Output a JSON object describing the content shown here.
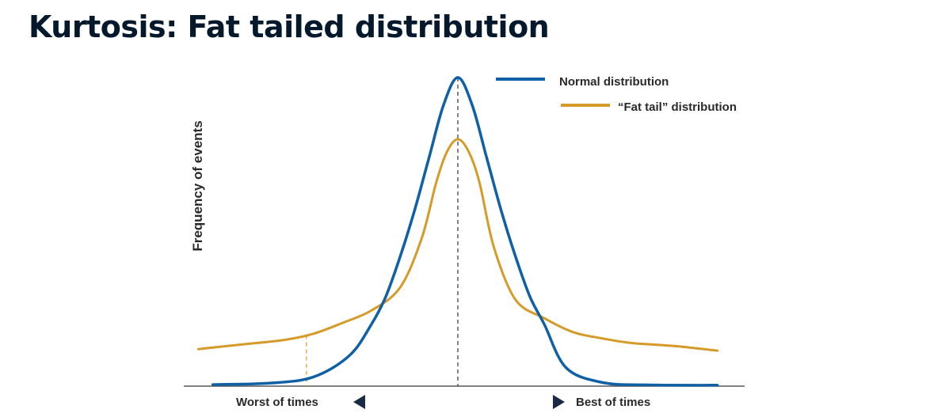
{
  "title": "Kurtosis: Fat tailed distribution",
  "colors": {
    "normal": "#1060a6",
    "fat_tail": "#d59a28",
    "axis": "#555555",
    "text": "#2a2a2a",
    "title": "#05192d"
  },
  "chart_data": {
    "type": "line",
    "ylabel": "Frequency of events",
    "xlabel_left": "Worst of times",
    "xlabel_right": "Best of times",
    "grid": false,
    "legend_position": "top-right",
    "xlim": [
      -3.6,
      3.6
    ],
    "ylim": [
      0,
      1
    ],
    "series": [
      {
        "name": "Normal distribution",
        "color": "#1060a6",
        "x": [
          -3.4,
          -2.6,
          -2.0,
          -1.5,
          -1.2,
          -1.0,
          -0.8,
          -0.6,
          -0.4,
          -0.2,
          0.0,
          0.2,
          0.4,
          0.6,
          0.8,
          1.0,
          1.2,
          1.5,
          2.0,
          2.6,
          3.6
        ],
        "y": [
          0.005,
          0.01,
          0.03,
          0.1,
          0.2,
          0.29,
          0.42,
          0.57,
          0.74,
          0.91,
          1.0,
          0.91,
          0.74,
          0.57,
          0.42,
          0.29,
          0.2,
          0.06,
          0.012,
          0.004,
          0.003
        ]
      },
      {
        "name": "“Fat tail” distribution",
        "color": "#d59a28",
        "x": [
          -3.6,
          -3.0,
          -2.4,
          -2.0,
          -1.6,
          -1.2,
          -0.8,
          -0.5,
          -0.3,
          -0.15,
          0.0,
          0.15,
          0.3,
          0.5,
          0.8,
          1.2,
          1.6,
          2.0,
          2.4,
          3.0,
          3.6
        ],
        "y": [
          0.12,
          0.135,
          0.15,
          0.17,
          0.205,
          0.245,
          0.32,
          0.48,
          0.66,
          0.76,
          0.8,
          0.76,
          0.66,
          0.45,
          0.28,
          0.22,
          0.175,
          0.155,
          0.14,
          0.13,
          0.115
        ]
      }
    ],
    "annotations": {
      "center_dashed_line_x": 0,
      "worst_times_dashed_line_x": -2.1
    }
  }
}
